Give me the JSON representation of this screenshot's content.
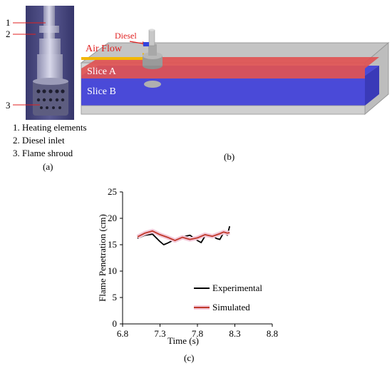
{
  "panel_a": {
    "callouts": [
      "1",
      "2",
      "3"
    ],
    "legend": [
      "1. Heating elements",
      "2. Diesel inlet",
      "3. Flame shroud"
    ],
    "caption": "(a)"
  },
  "panel_b": {
    "diesel_label": "Diesel",
    "airflow_label": "Air Flow",
    "slice_a_label": "Slice A",
    "slice_b_label": "Slice B",
    "caption": "(b)"
  },
  "panel_c": {
    "caption": "(c)"
  },
  "chart_data": {
    "type": "line",
    "title": "",
    "xlabel": "Time (s)",
    "ylabel": "Flame Penetration (cm)",
    "xlim": [
      6.8,
      8.8
    ],
    "ylim": [
      0,
      25
    ],
    "xticks": [
      "6.8",
      "7.3",
      "7.8",
      "8.3",
      "8.8"
    ],
    "yticks": [
      "0",
      "5",
      "10",
      "15",
      "20",
      "25"
    ],
    "legend_position": "bottom-right",
    "series": [
      {
        "name": "Experimental",
        "color": "#000000",
        "x": [
          7.0,
          7.1,
          7.2,
          7.3,
          7.35,
          7.4,
          7.5,
          7.6,
          7.7,
          7.8,
          7.85,
          7.9,
          8.0,
          8.05,
          8.1,
          8.15,
          8.2,
          8.23
        ],
        "y": [
          16.2,
          16.8,
          17.0,
          15.6,
          15.0,
          15.3,
          16.0,
          16.5,
          16.8,
          15.8,
          15.4,
          16.6,
          16.8,
          16.2,
          16.0,
          17.3,
          16.8,
          18.5
        ]
      },
      {
        "name": "Simulated",
        "color": "#c0392b",
        "x": [
          7.0,
          7.1,
          7.2,
          7.3,
          7.4,
          7.5,
          7.6,
          7.7,
          7.8,
          7.9,
          8.0,
          8.1,
          8.15,
          8.2,
          8.23
        ],
        "y": [
          16.5,
          17.2,
          17.6,
          16.9,
          16.4,
          15.8,
          16.4,
          16.0,
          16.3,
          16.9,
          16.6,
          17.1,
          17.4,
          17.2,
          17.3
        ]
      }
    ]
  }
}
